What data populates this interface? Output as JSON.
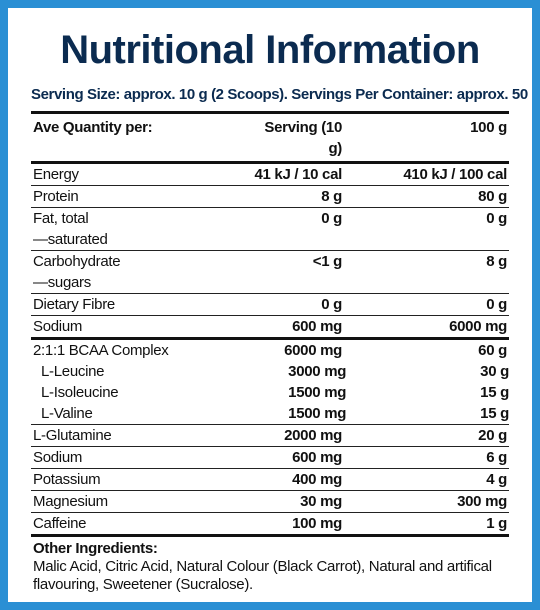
{
  "header": {
    "title": "Nutritional Information",
    "serving": "Serving Size: approx. 10 g (2 Scoops). Servings Per Container: approx. 50"
  },
  "table": {
    "columns": [
      "Ave Quantity per:",
      "Serving (10 g)",
      "100 g"
    ],
    "sections": [
      {
        "rows": [
          {
            "label": "Energy",
            "serving": "41 kJ / 10 cal",
            "per100": "410 kJ / 100 cal"
          },
          {
            "label": "Protein",
            "serving": "8 g",
            "per100": "80 g"
          },
          {
            "label": "Fat, total",
            "sublabel": "—saturated",
            "serving": "0 g",
            "per100": "0 g"
          },
          {
            "label": "Carbohydrate",
            "sublabel": "—sugars",
            "serving": "<1 g",
            "per100": "8 g"
          },
          {
            "label": "Dietary Fibre",
            "serving": "0 g",
            "per100": "0 g"
          },
          {
            "label": "Sodium",
            "serving": "600 mg",
            "per100": "6000 mg"
          }
        ]
      },
      {
        "rows": [
          {
            "label": "2:1:1 BCAA Complex",
            "serving": "6000 mg",
            "per100": "60 g",
            "components": [
              {
                "label": "L-Leucine",
                "serving": "3000 mg",
                "per100": "30 g"
              },
              {
                "label": "L-Isoleucine",
                "serving": "1500 mg",
                "per100": "15 g"
              },
              {
                "label": "L-Valine",
                "serving": "1500 mg",
                "per100": "15 g"
              }
            ]
          },
          {
            "label": "L-Glutamine",
            "serving": "2000 mg",
            "per100": "20 g"
          },
          {
            "label": "Sodium",
            "serving": "600 mg",
            "per100": "6 g"
          },
          {
            "label": "Potassium",
            "serving": "400 mg",
            "per100": "4 g"
          },
          {
            "label": "Magnesium",
            "serving": "30 mg",
            "per100": "300 mg"
          },
          {
            "label": "Caffeine",
            "serving": "100 mg",
            "per100": "1 g"
          }
        ]
      }
    ]
  },
  "other_ingredients": {
    "heading": "Other Ingredients:",
    "text": "Malic Acid, Citric Acid, Natural Colour (Black Carrot), Natural and artifical flavouring, Sweetener (Sucralose)."
  }
}
